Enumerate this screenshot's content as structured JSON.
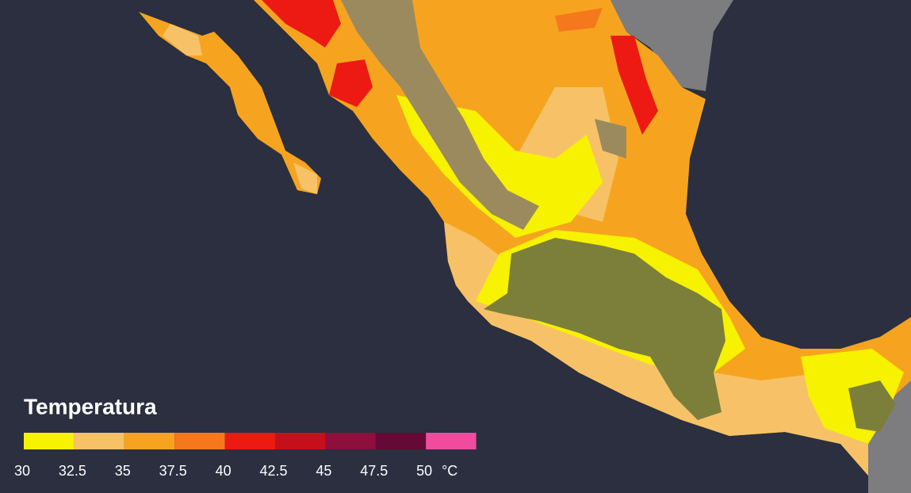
{
  "legend": {
    "title": "Temperatura",
    "ticks": [
      30,
      32.5,
      35,
      37.5,
      40,
      42.5,
      45,
      47.5,
      50
    ],
    "unit": "°C",
    "colors": [
      "#f6f200",
      "#f7c267",
      "#f6a41f",
      "#f5781c",
      "#ec1a12",
      "#c5101c",
      "#8c0f3c",
      "#650a36",
      "#ef4c9e"
    ]
  }
}
